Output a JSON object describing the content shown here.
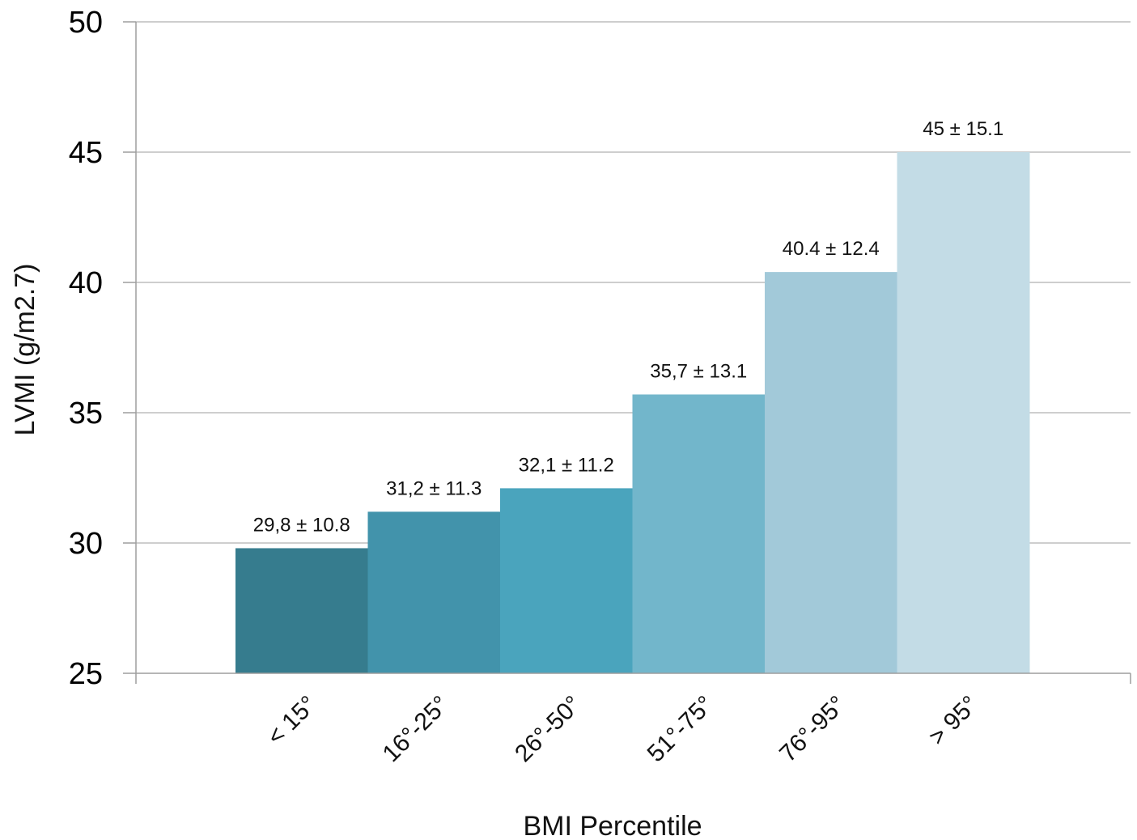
{
  "chart_data": {
    "type": "bar",
    "categories": [
      "< 15°",
      "16°-25°",
      "26°-50°",
      "51°-75°",
      "76°-95°",
      "> 95°"
    ],
    "values": [
      29.8,
      31.2,
      32.1,
      35.7,
      40.4,
      45
    ],
    "data_labels": [
      "29,8 ± 10.8",
      "31,2 ± 11.3",
      "32,1 ± 11.2",
      "35,7 ± 13.1",
      "40.4 ± 12.4",
      "45 ± 15.1"
    ],
    "colors": [
      "#367c8e",
      "#4293ab",
      "#4aa4bd",
      "#72b6cb",
      "#a2c9d9",
      "#c3dce6"
    ],
    "xlabel": "BMI Percentile",
    "ylabel": "LVMI (g/m2.7)",
    "ylim": [
      25,
      50
    ],
    "yticks": [
      "25",
      "30",
      "35",
      "40",
      "45",
      "50"
    ],
    "grid": true,
    "legend": "none"
  }
}
